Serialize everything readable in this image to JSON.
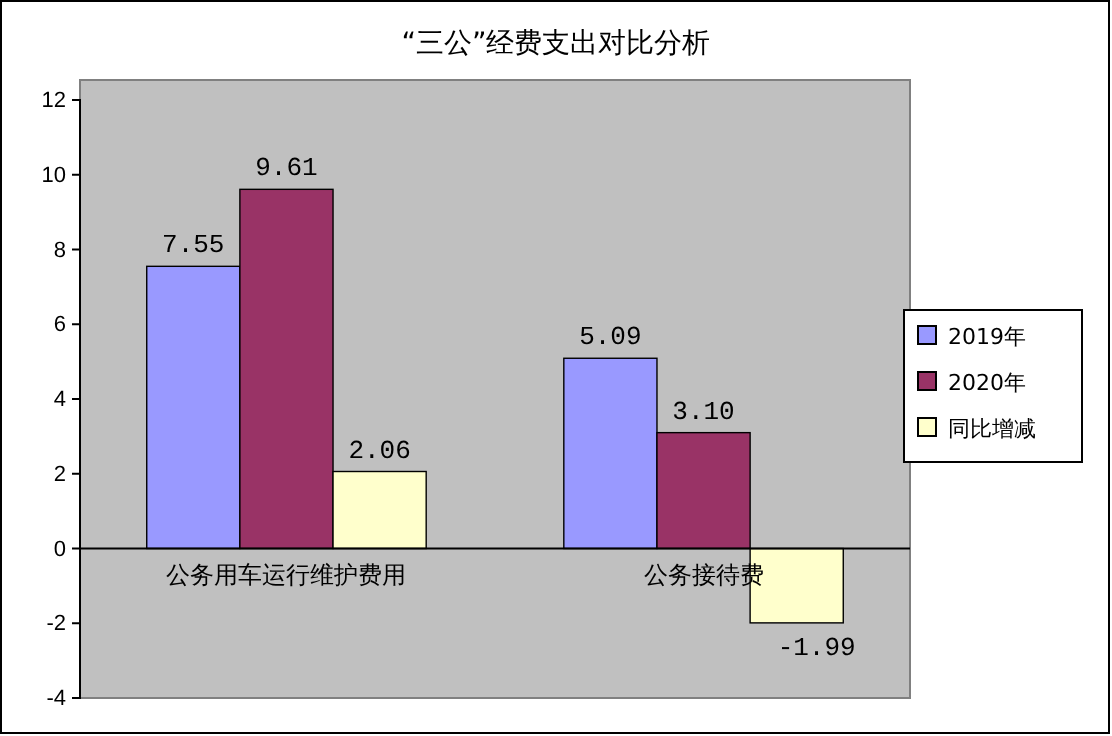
{
  "chart_data": {
    "type": "bar",
    "title": "“三公”经费支出对比分析",
    "categories": [
      "公务用车运行维护费用",
      "公务接待费"
    ],
    "series": [
      {
        "name": "2019年",
        "color": "#9999ff",
        "values": [
          7.55,
          5.09
        ],
        "value_labels": [
          "7.55",
          "5.09"
        ]
      },
      {
        "name": "2020年",
        "color": "#993366",
        "values": [
          9.61,
          3.1
        ],
        "value_labels": [
          "9.61",
          "3.10"
        ]
      },
      {
        "name": "同比增减",
        "color": "#ffffcc",
        "values": [
          2.06,
          -1.99
        ],
        "value_labels": [
          "2.06",
          "-1.99"
        ]
      }
    ],
    "ylim": [
      -4,
      12
    ],
    "yticks": [
      -4,
      -2,
      0,
      2,
      4,
      6,
      8,
      10,
      12
    ],
    "grid": false,
    "legend": "right"
  }
}
